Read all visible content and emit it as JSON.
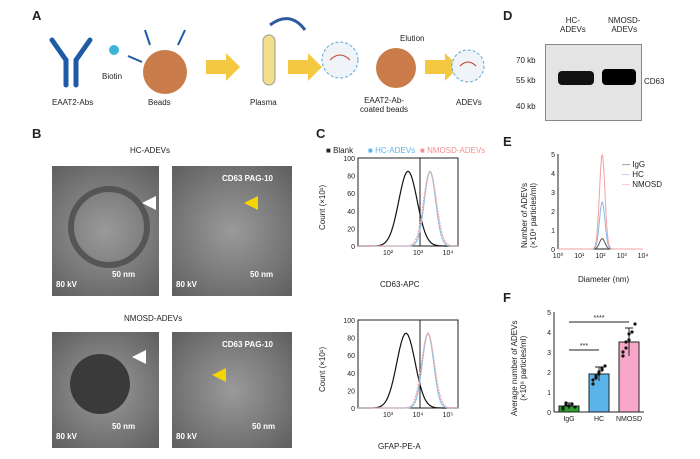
{
  "panels": {
    "A": "A",
    "B": "B",
    "C": "C",
    "D": "D",
    "E": "E",
    "F": "F"
  },
  "panelA": {
    "eaat2": "EAAT2-Abs",
    "biotin": "Biotin",
    "beads": "Beads",
    "plasma": "Plasma",
    "coated": "EAAT2-Ab-\ncoated beads",
    "elution": "Elution",
    "adevs": "ADEVs"
  },
  "panelB": {
    "hc_title": "HC-ADEVs",
    "nmosd_title": "NMOSD-ADEVs",
    "kv": "80 kV",
    "scale": "50 nm",
    "cd63": "CD63 PAG-10"
  },
  "panelC": {
    "legend": [
      "Blank",
      "HC-ADEVs",
      "NMOSD-ADEVs"
    ],
    "top_x": "CD63-APC",
    "bottom_x": "GFAP-PE-A",
    "ylabel": "Count (×10¹)",
    "top_yticks": [
      "0",
      "20",
      "40",
      "60",
      "80",
      "100"
    ],
    "top_xticks": [
      "10²",
      "10³",
      "10⁴"
    ],
    "bot_yticks": [
      "0",
      "20",
      "40",
      "60",
      "80",
      "100"
    ],
    "bot_xticks": [
      "10³",
      "10⁴",
      "10⁵"
    ]
  },
  "panelD": {
    "hc": "HC-\nADEVs",
    "nmosd": "NMOSD-\nADEVs",
    "marks": [
      "70 kb",
      "55 kb",
      "40 kb"
    ],
    "protein": "CD63"
  },
  "panelE": {
    "ylabel": "Number of ADEVs\n(×10⁹ particles/ml)",
    "xlabel": "Diameter (nm)",
    "legend": [
      "IgG",
      "HC",
      "NMOSD"
    ],
    "yticks": [
      "0",
      "1",
      "2",
      "3",
      "4",
      "5"
    ],
    "xticks": [
      "10⁰",
      "10¹",
      "10²",
      "10³",
      "10⁴"
    ],
    "colors": [
      "#555555",
      "#8ab8e6",
      "#f2a0a0"
    ]
  },
  "panelF": {
    "ylabel": "Average number of ADEVs\n(×10⁹ particles/ml)",
    "yticks": [
      "0",
      "1",
      "2",
      "3",
      "4",
      "5"
    ],
    "sig1": "***",
    "sig2": "****"
  },
  "chart_data": [
    {
      "type": "bar",
      "categories": [
        "IgG",
        "HC",
        "NMOSD"
      ],
      "values": [
        0.3,
        1.9,
        3.5
      ],
      "errors": [
        0.15,
        0.35,
        0.7
      ],
      "ylim": [
        0,
        5
      ],
      "colors": [
        "#2ca02c",
        "#5ab4ea",
        "#f7a8c9"
      ],
      "points": [
        [
          0.2,
          0.35,
          0.3,
          0.4,
          0.25,
          0.15,
          0.45
        ],
        [
          1.4,
          1.7,
          1.9,
          2.1,
          2.3,
          1.6,
          1.8,
          2.0,
          2.2
        ],
        [
          2.8,
          3.2,
          3.6,
          4.0,
          4.4,
          3.0,
          3.5,
          3.9
        ]
      ]
    }
  ]
}
